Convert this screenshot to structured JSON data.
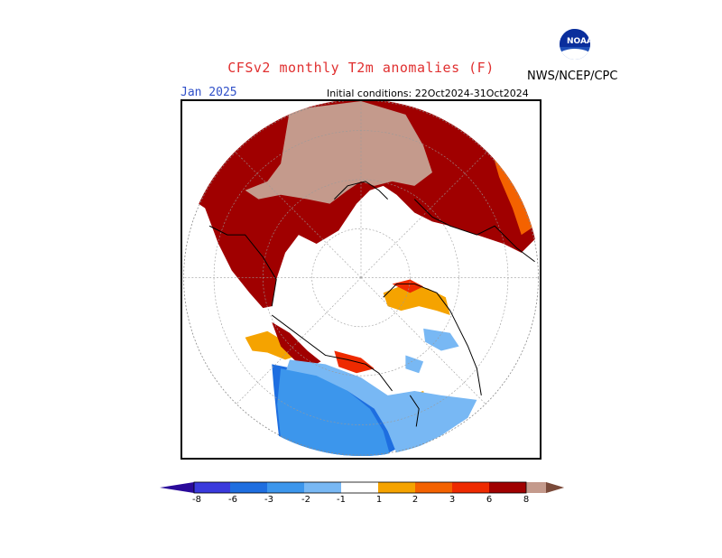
{
  "header": {
    "title": "CFSv2 monthly T2m anomalies (F)",
    "agency": "NWS/NCEP/CPC",
    "logo_text": "NOAA",
    "month": "Jan 2025",
    "initial_conditions": "Initial conditions: 22Oct2024-31Oct2024"
  },
  "colors": {
    "title": "#e03030",
    "month": "#3050c8",
    "frame": "#000000"
  },
  "legend": {
    "colors": [
      "#2a0a9a",
      "#3a3adc",
      "#1e6ee0",
      "#3c96ec",
      "#78b8f4",
      "#ffffff",
      "#f5a300",
      "#f46200",
      "#ee2a00",
      "#a00000",
      "#c49a8c",
      "#7a4a3a"
    ],
    "ticks": [
      "-8",
      "-6",
      "-3",
      "-2",
      "-1",
      "1",
      "2",
      "3",
      "6",
      "8"
    ]
  },
  "map": {
    "projection": "north-polar-stereographic",
    "regions": [
      {
        "name": "europe-siberia",
        "anomaly": "6 to 8+"
      },
      {
        "name": "central-asia",
        "anomaly": "3 to 6"
      },
      {
        "name": "western-north-america",
        "anomaly": "-2 to -6"
      },
      {
        "name": "northern-canada",
        "anomaly": "-1 to -2"
      },
      {
        "name": "greenland",
        "anomaly": "1 to 3"
      }
    ]
  }
}
